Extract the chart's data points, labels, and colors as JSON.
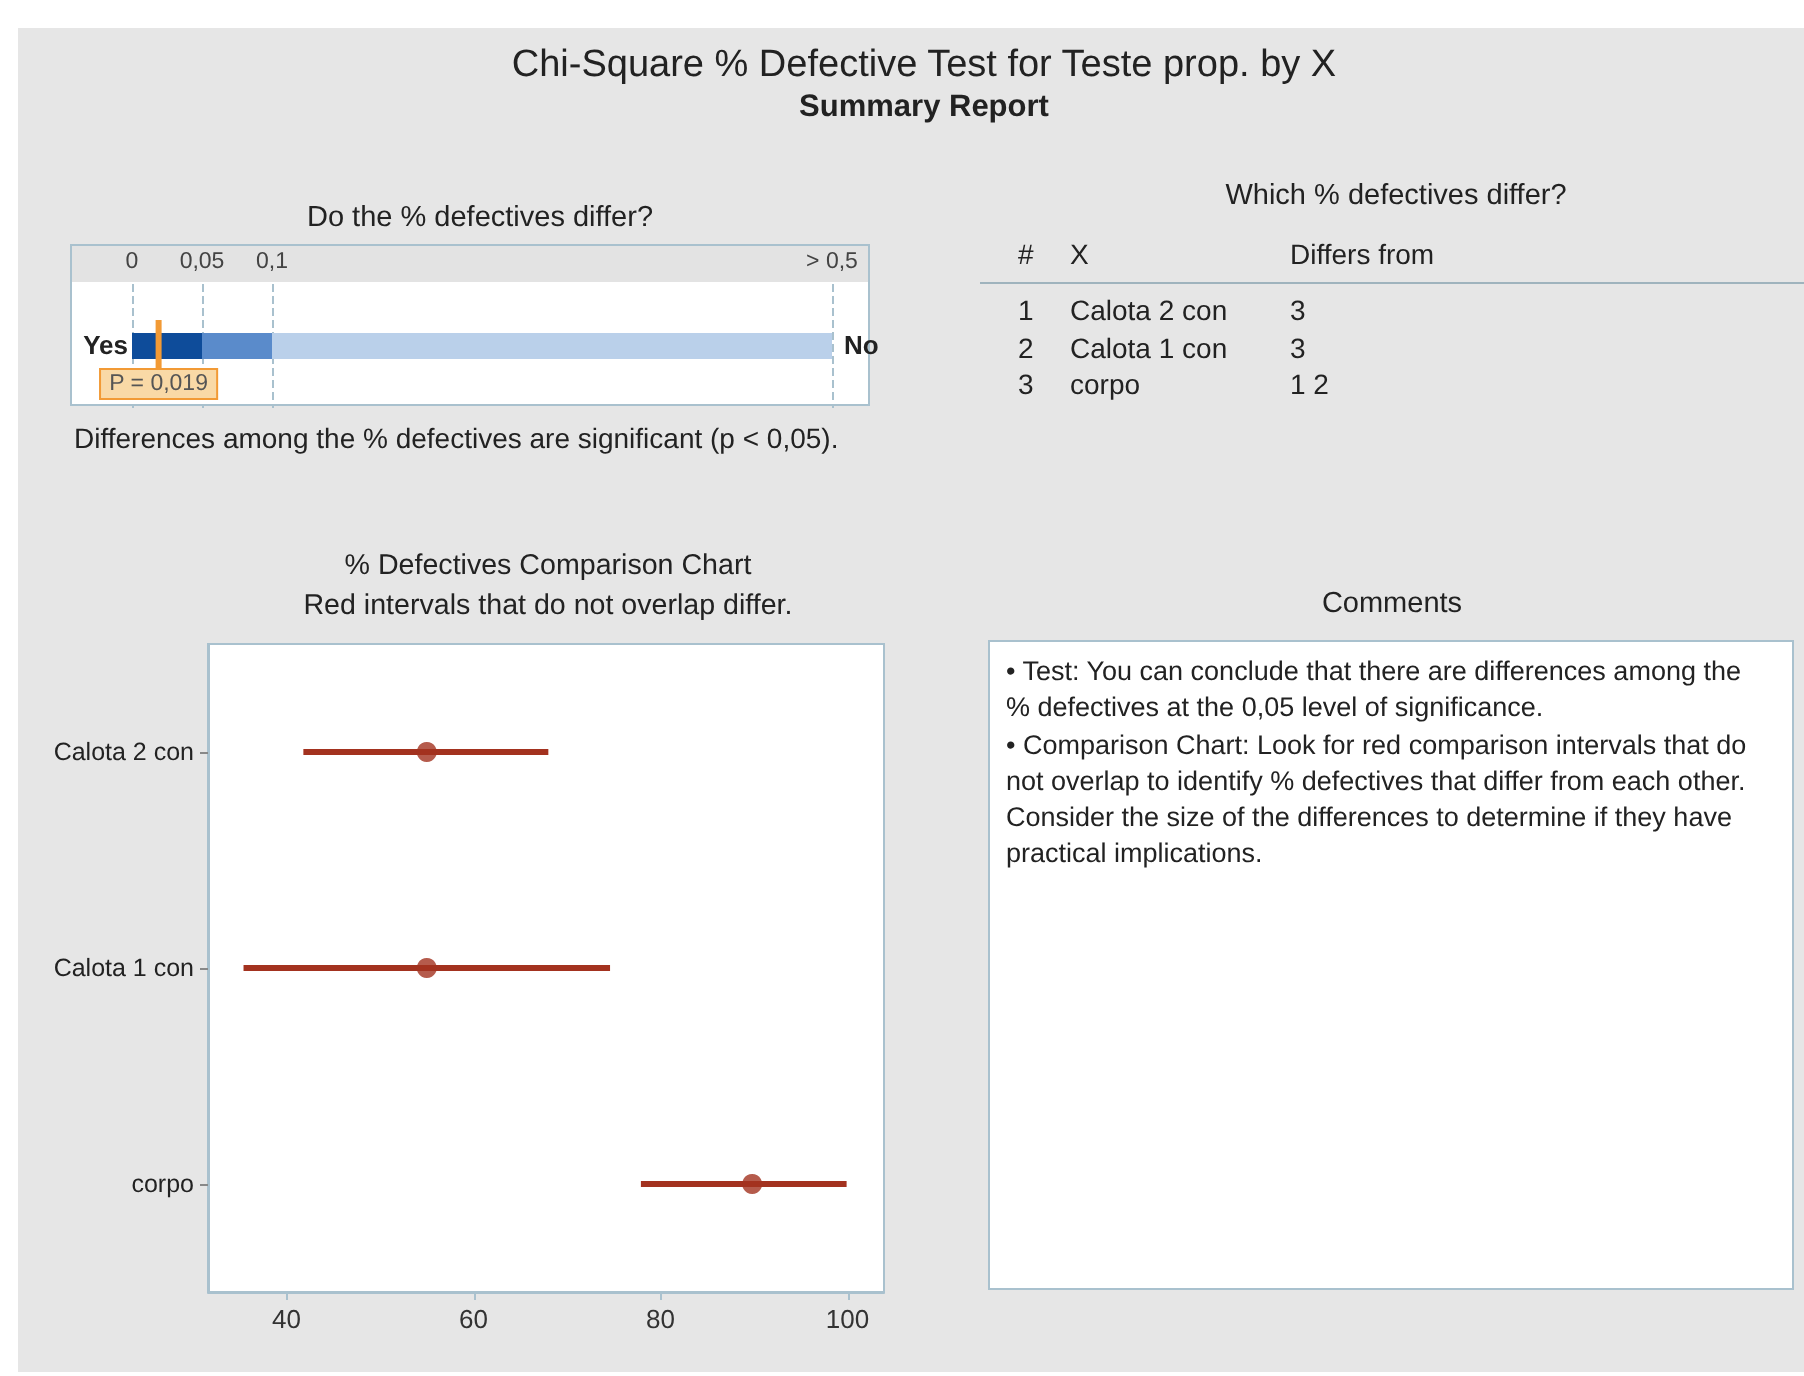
{
  "chart_data": [
    {
      "type": "other",
      "title": "Chi-Square % Defective Test for Teste prop. by X",
      "subtitle": "Summary Report"
    },
    {
      "type": "bar",
      "title": "Do the % defectives differ?",
      "orientation": "horizontal",
      "stacked": true,
      "categories": [
        null
      ],
      "series": [
        {
          "color": "#0e4c9a",
          "values": [
            0.05
          ]
        },
        {
          "color": "#5a8bcb",
          "values": [
            0.05
          ]
        },
        {
          "color": "#bad0ea",
          "values": [
            0.4
          ]
        }
      ],
      "xlim": [
        0,
        0.5
      ],
      "xticks": [
        {
          "value": 0,
          "label": "0"
        },
        {
          "value": 0.05,
          "label": "0,05"
        },
        {
          "value": 0.1,
          "label": "0,1"
        },
        {
          "value": 0.5,
          "label": "> 0,5"
        }
      ],
      "grid": "x",
      "ref_lines": [
        {
          "axis": "x",
          "value": 0.019,
          "label": "P = 0,019",
          "color": "#f29a35"
        }
      ],
      "annotations": [
        "Yes",
        "No",
        "Differences among the % defectives are significant (p < 0,05)."
      ]
    },
    {
      "type": "other",
      "title": "Which % defectives differ?",
      "categories": [
        "#",
        "X",
        "Differs from"
      ],
      "annotations": [
        "1",
        "Calota 2 con",
        "3",
        "2",
        "Calota 1 con",
        "3",
        "3",
        "corpo",
        "1 2"
      ]
    },
    {
      "type": "scatter",
      "title": "% Defectives Comparison Chart",
      "subtitle": "Red intervals that do not overlap differ.",
      "orientation": "horizontal",
      "categories": [
        "Calota 2 con",
        "Calota 1 con",
        "corpo"
      ],
      "values": [
        55.0,
        55.0,
        89.8
      ],
      "errors": [
        [
          41.8,
          68.0
        ],
        [
          35.4,
          74.6
        ],
        [
          77.9,
          99.9
        ]
      ],
      "color": "#a3321f",
      "marker": "circle",
      "xlim": [
        31.6,
        103.9
      ],
      "xticks": [
        40,
        60,
        80,
        100
      ]
    },
    {
      "type": "other",
      "title": "Comments",
      "annotations": [
        "• Test: You can conclude that there are differences among the % defectives at the 0,05 level of significance.",
        "• Comparison Chart: Look for red comparison intervals that do not overlap to identify % defectives that differ from each other. Consider the size of the differences to determine if they have practical implications."
      ]
    }
  ]
}
